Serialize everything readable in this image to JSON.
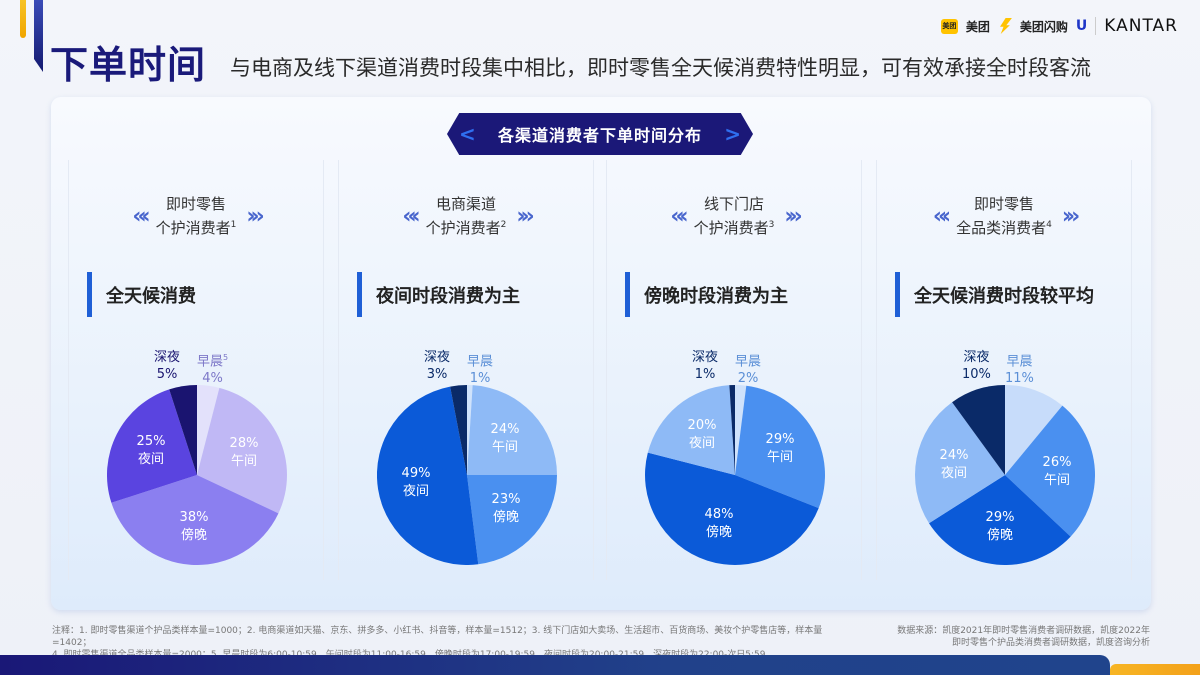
{
  "header": {
    "title": "下单时间",
    "subtitle": "与电商及线下渠道消费时段集中相比，即时零售全天候消费特性明显，可有效承接全时段客流",
    "logos": {
      "meituan_box": "美团",
      "meituan": "美团",
      "meituan_shangou": "美团闪购",
      "unilever": "U",
      "kantar": "KANTAR"
    }
  },
  "banner": {
    "title": "各渠道消费者下单时间分布",
    "left_chevron": "<",
    "right_chevron": ">"
  },
  "panels": [
    {
      "label_line1": "即时零售",
      "label_line2": "个护消费者",
      "footnote_ref": "1",
      "headline": "全天候消费",
      "early_label": "早晨",
      "early_sup": "5",
      "early_value": "4%",
      "late_label": "深夜",
      "late_value": "5%",
      "slices": [
        {
          "name": "午间",
          "value": "28%"
        },
        {
          "name": "傍晚",
          "value": "38%"
        },
        {
          "name": "夜间",
          "value": "25%"
        }
      ]
    },
    {
      "label_line1": "电商渠道",
      "label_line2": "个护消费者",
      "footnote_ref": "2",
      "headline": "夜间时段消费为主",
      "early_label": "早晨",
      "early_sup": "",
      "early_value": "1%",
      "late_label": "深夜",
      "late_value": "3%",
      "slices": [
        {
          "name": "午间",
          "value": "24%"
        },
        {
          "name": "傍晚",
          "value": "23%"
        },
        {
          "name": "夜间",
          "value": "49%"
        }
      ]
    },
    {
      "label_line1": "线下门店",
      "label_line2": "个护消费者",
      "footnote_ref": "3",
      "headline": "傍晚时段消费为主",
      "early_label": "早晨",
      "early_sup": "",
      "early_value": "2%",
      "late_label": "深夜",
      "late_value": "1%",
      "slices": [
        {
          "name": "午间",
          "value": "29%"
        },
        {
          "name": "傍晚",
          "value": "48%"
        },
        {
          "name": "夜间",
          "value": "20%"
        }
      ]
    },
    {
      "label_line1": "即时零售",
      "label_line2": "全品类消费者",
      "footnote_ref": "4",
      "headline": "全天候消费时段较平均",
      "early_label": "早晨",
      "early_sup": "",
      "early_value": "11%",
      "late_label": "深夜",
      "late_value": "10%",
      "slices": [
        {
          "name": "午间",
          "value": "26%"
        },
        {
          "name": "傍晚",
          "value": "29%"
        },
        {
          "name": "夜间",
          "value": "24%"
        }
      ]
    }
  ],
  "chart_data": [
    {
      "type": "pie",
      "title": "即时零售 个护消费者",
      "categories": [
        "早晨",
        "午间",
        "傍晚",
        "夜间",
        "深夜"
      ],
      "values": [
        4,
        28,
        38,
        25,
        5
      ],
      "colors": [
        "#e3e1fb",
        "#c0b8f5",
        "#8b7ff0",
        "#5a44e0",
        "#1a1470"
      ]
    },
    {
      "type": "pie",
      "title": "电商渠道 个护消费者",
      "categories": [
        "早晨",
        "午间",
        "傍晚",
        "夜间",
        "深夜"
      ],
      "values": [
        1,
        24,
        23,
        49,
        3
      ],
      "colors": [
        "#cfe2fb",
        "#8ebaf6",
        "#4a90f0",
        "#0b5ad8",
        "#0a2a68"
      ]
    },
    {
      "type": "pie",
      "title": "线下门店 个护消费者",
      "categories": [
        "早晨",
        "午间",
        "傍晚",
        "夜间",
        "深夜"
      ],
      "values": [
        2,
        29,
        48,
        20,
        1
      ],
      "colors": [
        "#cfe2fb",
        "#4a90f0",
        "#0b5ad8",
        "#8ebaf6",
        "#0a2a68"
      ]
    },
    {
      "type": "pie",
      "title": "即时零售 全品类消费者",
      "categories": [
        "早晨",
        "午间",
        "傍晚",
        "夜间",
        "深夜"
      ],
      "values": [
        11,
        26,
        29,
        24,
        10
      ],
      "colors": [
        "#c7dcfa",
        "#4a90f0",
        "#0b5ad8",
        "#8ebaf6",
        "#0a2a68"
      ]
    }
  ],
  "footnote": {
    "line1": "注释：1. 即时零售渠道个护品类样本量=1000；2. 电商渠道如天猫、京东、拼多多、小红书、抖音等，样本量=1512；3. 线下门店如大卖场、生活超市、百货商场、美妆个护零售店等，样本量=1402；",
    "line2": "4. 即时零售渠道全品类样本量=2000；5. 早晨时段为6:00-10:59，午间时段为11:00-16:59，傍晚时段为17:00-19:59，夜间时段为20:00-21:59，深夜时段为22:00-次日5:59"
  },
  "source": {
    "line1": "数据来源：凯度2021年即时零售消费者调研数据，凯度2022年",
    "line2": "即时零售个护品类消费者调研数据，凯度咨询分析"
  }
}
